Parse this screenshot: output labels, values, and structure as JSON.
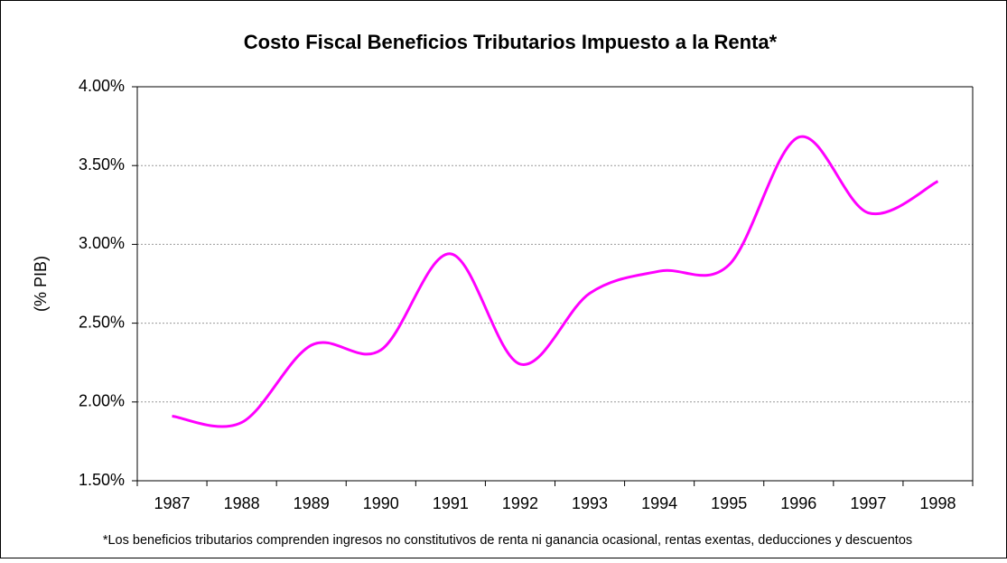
{
  "chart_data": {
    "type": "line",
    "title": "Costo Fiscal Beneficios Tributarios Impuesto a la Renta*",
    "y_label": "(% PIB)",
    "footnote": "*Los beneficios tributarios comprenden ingresos no constitutivos de renta ni ganancia ocasional, rentas exentas, deducciones y descuentos",
    "categories": [
      "1987",
      "1988",
      "1989",
      "1990",
      "1991",
      "1992",
      "1993",
      "1994",
      "1995",
      "1996",
      "1997",
      "1998"
    ],
    "values": [
      1.91,
      1.87,
      2.36,
      2.33,
      2.94,
      2.24,
      2.69,
      2.83,
      2.87,
      3.68,
      3.2,
      3.4
    ],
    "color": "#ff00ff",
    "ylim": [
      1.5,
      4.0
    ],
    "yticks": [
      {
        "value": 1.5,
        "label": "1.50%"
      },
      {
        "value": 2.0,
        "label": "2.00%"
      },
      {
        "value": 2.5,
        "label": "2.50%"
      },
      {
        "value": 3.0,
        "label": "3.00%"
      },
      {
        "value": 3.5,
        "label": "3.50%"
      },
      {
        "value": 4.0,
        "label": "4.00%"
      }
    ],
    "grid": true
  }
}
